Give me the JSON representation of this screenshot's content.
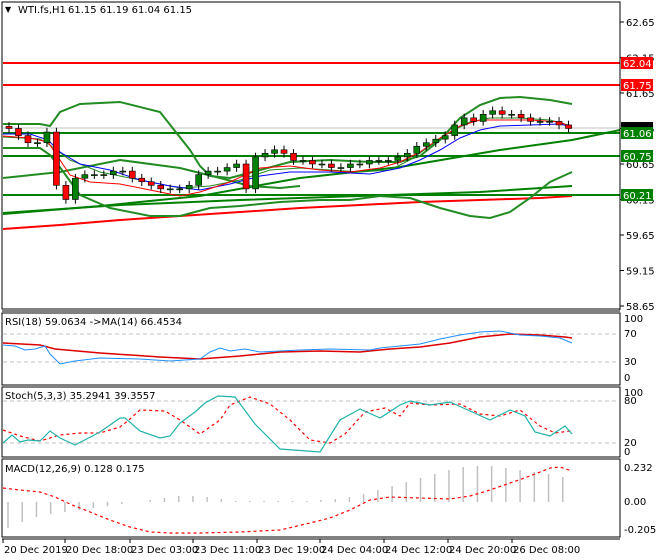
{
  "header": {
    "symbol_label": "WTI.fs,H1",
    "ohlc": "61.15 61.19 61.04 61.15"
  },
  "colors": {
    "bull": "#008000",
    "bear": "#ff0000",
    "bollinger": "#228b22",
    "support": "#008000",
    "resistance": "#ff0000",
    "ma_fast": "#ff0000",
    "ma_slow": "#0000ff",
    "ma_long": "#ff0000",
    "rsi": "#1e90ff",
    "rsi_ma": "#dc0000",
    "stoch_main": "#20b2aa",
    "stoch_signal": "#ff0000",
    "macd_hist": "#c0c0c0",
    "macd_signal": "#ff0000",
    "grid_dash": "#c0c0c0"
  },
  "main_axis": {
    "ticks": [
      "62.65",
      "62.15",
      "61.65",
      "61.15",
      "60.65",
      "60.15",
      "59.65",
      "59.15",
      "58.65"
    ],
    "current_price": "61.15"
  },
  "levels": [
    {
      "value": "62.04",
      "type": "resistance"
    },
    {
      "value": "61.75",
      "type": "resistance"
    },
    {
      "value": "61.06",
      "type": "support"
    },
    {
      "value": "60.75",
      "type": "support"
    },
    {
      "value": "60.21",
      "type": "support"
    }
  ],
  "rsi": {
    "label": "RSI(18) 59.0634  ->MA(14) 66.4534",
    "ticks": [
      "100",
      "70",
      "30",
      "0"
    ]
  },
  "stoch": {
    "label": "Stoch(5,3,3) 35.2941 39.3557",
    "ticks": [
      "100",
      "80",
      "20",
      "0"
    ]
  },
  "macd": {
    "label": "MACD(12,26,9) 0.128 0.175",
    "ticks": [
      "0.232",
      "0.00",
      "-0.205"
    ]
  },
  "time_axis": {
    "labels": [
      "20 Dec 2019",
      "20 Dec 18:00",
      "23 Dec 03:00",
      "23 Dec 11:00",
      "23 Dec 19:00",
      "24 Dec 04:00",
      "24 Dec 12:00",
      "24 Dec 20:00",
      "26 Dec 08:00"
    ]
  },
  "chart_data": [
    {
      "type": "candlestick",
      "title": "WTI.fs,H1",
      "ohlc_last": {
        "open": 61.15,
        "high": 61.19,
        "low": 61.04,
        "close": 61.15
      },
      "ylim": [
        58.65,
        62.85
      ],
      "y_ticks": [
        62.65,
        62.15,
        61.65,
        61.15,
        60.65,
        60.15,
        59.65,
        59.15,
        58.65
      ],
      "x_labels": [
        "20 Dec 2019",
        "20 Dec 18:00",
        "23 Dec 03:00",
        "23 Dec 11:00",
        "23 Dec 19:00",
        "24 Dec 04:00",
        "24 Dec 12:00",
        "24 Dec 20:00",
        "26 Dec 08:00"
      ],
      "horizontal_levels": [
        62.04,
        61.75,
        61.06,
        60.75,
        60.21
      ],
      "indicators": [
        "Bollinger Bands",
        "MA fast (red)",
        "MA slow (blue)",
        "MA long (red, lower)",
        "Trend lines (green)"
      ],
      "approx_close_path": [
        61.15,
        61.05,
        60.95,
        60.95,
        61.1,
        60.35,
        60.15,
        60.45,
        60.5,
        60.5,
        60.5,
        60.55,
        60.55,
        60.45,
        60.4,
        60.35,
        60.3,
        60.3,
        60.3,
        60.35,
        60.5,
        60.55,
        60.55,
        60.6,
        60.65,
        60.3,
        60.75,
        60.8,
        60.85,
        60.8,
        60.7,
        60.7,
        60.65,
        60.65,
        60.6,
        60.6,
        60.65,
        60.65,
        60.7,
        60.7,
        60.7,
        60.75,
        60.8,
        60.9,
        60.95,
        61.0,
        61.05,
        61.2,
        61.3,
        61.25,
        61.35,
        61.4,
        61.35,
        61.35,
        61.3,
        61.25,
        61.25,
        61.25,
        61.2,
        61.15
      ]
    },
    {
      "type": "line",
      "title": "RSI(18) 59.0634 ->MA(14) 66.4534",
      "ylim": [
        0,
        100
      ],
      "y_ticks": [
        100,
        70,
        30,
        0
      ],
      "series": [
        {
          "name": "RSI(18)",
          "last": 59.0634
        },
        {
          "name": "MA(14)",
          "last": 66.4534
        }
      ]
    },
    {
      "type": "line",
      "title": "Stoch(5,3,3) 35.2941 39.3557",
      "ylim": [
        0,
        100
      ],
      "y_ticks": [
        100,
        80,
        20,
        0
      ],
      "series": [
        {
          "name": "%K",
          "last": 35.2941
        },
        {
          "name": "%D",
          "last": 39.3557
        }
      ]
    },
    {
      "type": "bar",
      "title": "MACD(12,26,9) 0.128 0.175",
      "ylim": [
        -0.205,
        0.232
      ],
      "y_ticks": [
        0.232,
        0.0,
        -0.205
      ],
      "series": [
        {
          "name": "MACD histogram",
          "last": 0.128
        },
        {
          "name": "Signal",
          "last": 0.175
        }
      ]
    }
  ]
}
